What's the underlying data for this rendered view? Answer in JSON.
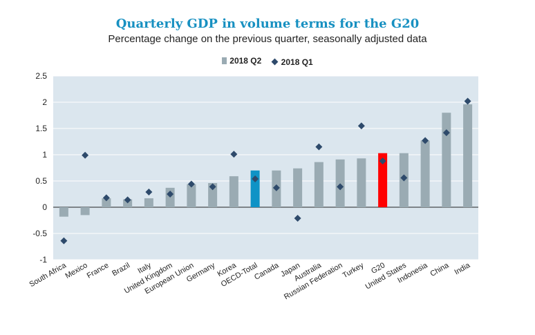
{
  "chart_data": {
    "type": "bar",
    "title": "Quarterly GDP in volume terms for the G20",
    "subtitle": "Percentage change on the previous quarter, seasonally adjusted data",
    "xlabel": "",
    "ylabel": "",
    "ylim": [
      -1,
      2.5
    ],
    "yticks": [
      -1,
      -0.5,
      0,
      0.5,
      1,
      1.5,
      2,
      2.5
    ],
    "ytick_labels": [
      "-1",
      "-0.5",
      "0",
      "0.5",
      "1",
      "1.5",
      "2",
      "2.5"
    ],
    "legend_position": "top-center",
    "categories": [
      "South Africa",
      "Mexico",
      "France",
      "Brazil",
      "Italy",
      "United Kingdom",
      "European Union",
      "Germany",
      "Korea",
      "OECD-Total",
      "Canada",
      "Japan",
      "Australia",
      "Russian Federation",
      "Turkey",
      "G20",
      "United States",
      "Indonesia",
      "China",
      "India"
    ],
    "series": [
      {
        "name": "2018 Q2",
        "kind": "bar",
        "color": "#9aabb3",
        "values": [
          -0.18,
          -0.15,
          0.17,
          0.15,
          0.17,
          0.37,
          0.44,
          0.46,
          0.59,
          0.7,
          0.7,
          0.74,
          0.86,
          0.91,
          0.93,
          1.03,
          1.03,
          1.27,
          1.8,
          1.96
        ]
      },
      {
        "name": "2018 Q1",
        "kind": "marker",
        "color": "#2e4a6b",
        "values": [
          -0.64,
          0.99,
          0.18,
          0.14,
          0.29,
          0.25,
          0.44,
          0.39,
          1.01,
          0.54,
          0.37,
          -0.21,
          1.15,
          0.39,
          1.55,
          0.88,
          0.56,
          1.27,
          1.42,
          2.02
        ]
      }
    ],
    "highlight_colors": {
      "OECD-Total": "#0f93c6",
      "G20": "#ff0000"
    },
    "plot_background": "#dbe6ee"
  }
}
